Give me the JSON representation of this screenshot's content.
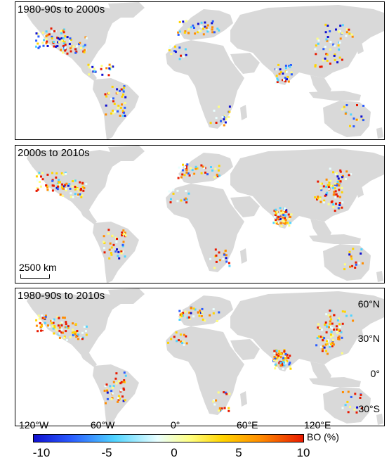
{
  "panels": [
    {
      "title": "1980-90s to 2000s"
    },
    {
      "title": "2000s to 2010s"
    },
    {
      "title": "1980-90s to 2010s"
    }
  ],
  "scale_bar": {
    "label": "2500 km"
  },
  "lat_labels": [
    "60°N",
    "30°N",
    "0°",
    "30°S"
  ],
  "lon_labels": [
    "120°W",
    "60°W",
    "0°",
    "60°E",
    "120°E"
  ],
  "colorbar": {
    "unit_label": "BO (%)",
    "ticks": [
      "-10",
      "-5",
      "0",
      "5",
      "10"
    ],
    "range": [
      -10,
      10
    ],
    "colors": [
      "#1010d0",
      "#2a5cff",
      "#4fd4ff",
      "#eaffff",
      "#ffff80",
      "#ffd400",
      "#ff8c00",
      "#e81a00"
    ]
  },
  "land_color": "#d9d9d9"
}
